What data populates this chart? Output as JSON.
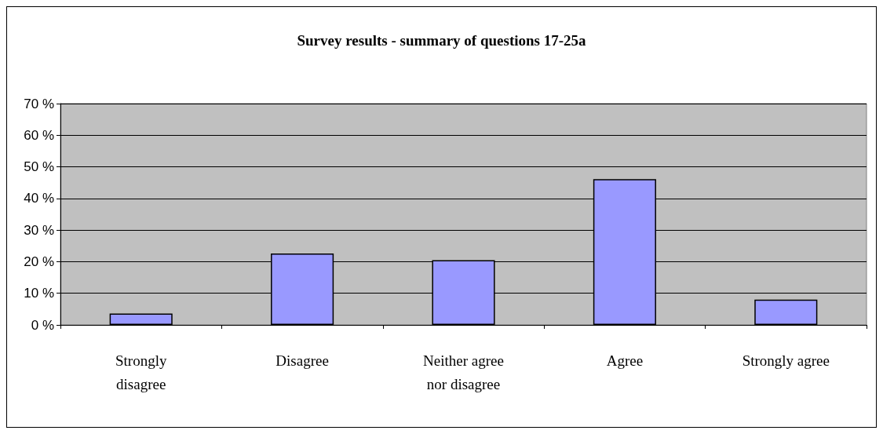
{
  "chart_data": {
    "type": "bar",
    "title": "Survey results - summary of questions 17-25a",
    "categories": [
      "Strongly\ndisagree",
      "Disagree",
      "Neither agree\nnor disagree",
      "Agree",
      "Strongly agree"
    ],
    "values": [
      3.6,
      22.6,
      20.5,
      46.1,
      8.0
    ],
    "color": "#9999ff",
    "ylim": [
      0,
      70
    ],
    "yticks": [
      {
        "value": 0,
        "label": "0 %"
      },
      {
        "value": 10,
        "label": "10 %"
      },
      {
        "value": 20,
        "label": "20 %"
      },
      {
        "value": 30,
        "label": "30 %"
      },
      {
        "value": 40,
        "label": "40 %"
      },
      {
        "value": 50,
        "label": "50 %"
      },
      {
        "value": 60,
        "label": "60 %"
      },
      {
        "value": 70,
        "label": "70 %"
      }
    ],
    "grid": "y"
  }
}
